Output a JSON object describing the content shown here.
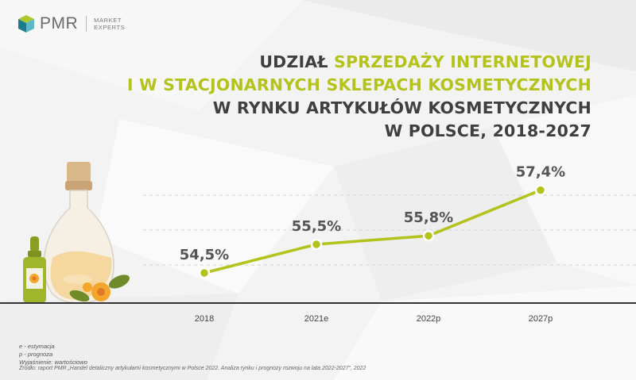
{
  "brand": {
    "name": "PMR",
    "tag_line1": "MARKET",
    "tag_line2": "EXPERTS"
  },
  "title": {
    "line1_dark": "UDZIAŁ ",
    "line1_green": "SPRZEDAŻY INTERNETOWEJ",
    "line2_green": "I W STACJONARNYCH SKLEPACH KOSMETYCZNYCH",
    "line3": "W RYNKU ARTYKUŁÓW KOSMETYCZNYCH",
    "line4": "W POLSCE, 2018-2027"
  },
  "notes": {
    "e": "e - estymacja",
    "p": "p - prognoza",
    "value": "Wyjaśnienie: wartościowo"
  },
  "source": "Źródło: raport PMR „Handel detaliczny artykułami kosmetycznymi w Polsce 2022. Analiza rynku i prognozy rozwoju na lata 2022-2027”, 2022",
  "colors": {
    "accent": "#b4c21c",
    "text": "#3f3f3f",
    "axis": "#333333"
  },
  "chart_data": {
    "type": "line",
    "categories": [
      "2018",
      "2021e",
      "2022p",
      "2027p"
    ],
    "values": [
      54.5,
      55.5,
      55.8,
      57.4
    ],
    "labels": [
      "54,5%",
      "55,5%",
      "55,8%",
      "57,4%"
    ],
    "unit": "%",
    "ylim": [
      53.5,
      58.5
    ],
    "grid": true
  }
}
